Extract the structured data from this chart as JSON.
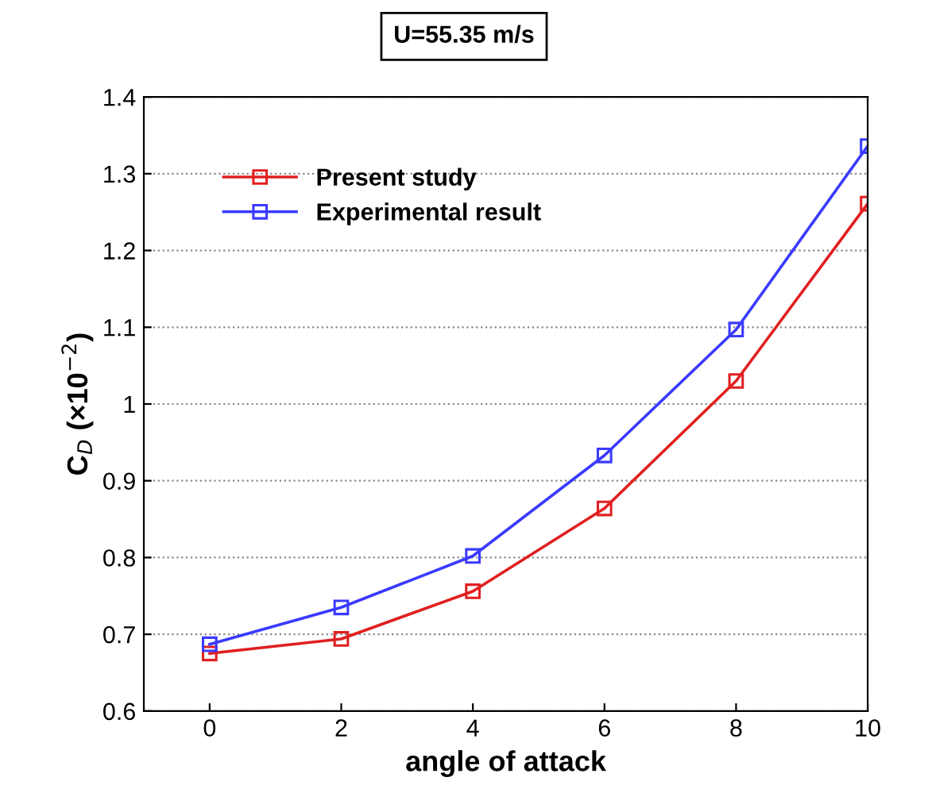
{
  "chart_data": {
    "type": "line",
    "title": "U=55.35 m/s",
    "xlabel": "angle of attack",
    "ylabel": "C$_{D}$ (×10$^{−2}$)",
    "x": [
      0,
      2,
      4,
      6,
      8,
      10
    ],
    "series": [
      {
        "name": "Present study",
        "color": "#e02020",
        "values": [
          0.675,
          0.694,
          0.756,
          0.864,
          1.03,
          1.261
        ]
      },
      {
        "name": "Experimental result",
        "color": "#3a3aff",
        "values": [
          0.687,
          0.735,
          0.802,
          0.933,
          1.097,
          1.336
        ]
      }
    ],
    "xlim": [
      -1,
      10
    ],
    "xticks": [
      0,
      2,
      4,
      6,
      8,
      10
    ],
    "ylim": [
      0.6,
      1.4
    ],
    "yticks": [
      0.6,
      0.7,
      0.8,
      0.9,
      1,
      1.1,
      1.2,
      1.3,
      1.4
    ],
    "grid": "y",
    "legend": "top left",
    "marker": "square",
    "line_style": "solid"
  }
}
